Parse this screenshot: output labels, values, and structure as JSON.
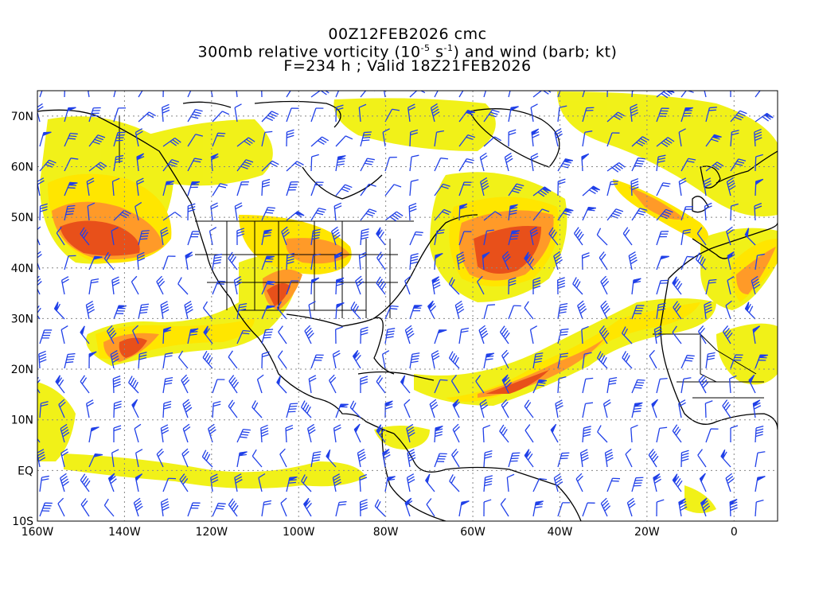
{
  "title": {
    "line1": "00Z12FEB2026 cmc",
    "line2_pre": "300mb relative vorticity (10",
    "line2_exp1": "-5",
    "line2_mid": " s",
    "line2_exp2": "-1",
    "line2_post": ") and wind (barb; kt)",
    "line3": "F=234 h ; Valid 18Z21FEB2026"
  },
  "axes": {
    "lon_labels": [
      "160W",
      "140W",
      "120W",
      "100W",
      "80W",
      "60W",
      "40W",
      "20W",
      "0"
    ],
    "lat_labels": [
      "70N",
      "60N",
      "50N",
      "40N",
      "30N",
      "20N",
      "10N",
      "EQ",
      "10S"
    ],
    "lon_range": [
      -160,
      10
    ],
    "lat_range": [
      -10,
      75
    ]
  },
  "colors": {
    "fill_light": "#f0f000",
    "fill_yellow": "#ffe600",
    "fill_orange_light": "#ffc040",
    "fill_orange": "#ff9a28",
    "fill_red_orange": "#ff6a18",
    "fill_red": "#e83a10",
    "barb": "#2040e8",
    "coast": "#000000"
  },
  "icons": {
    "wind-barb": "wind-barb-icon"
  }
}
